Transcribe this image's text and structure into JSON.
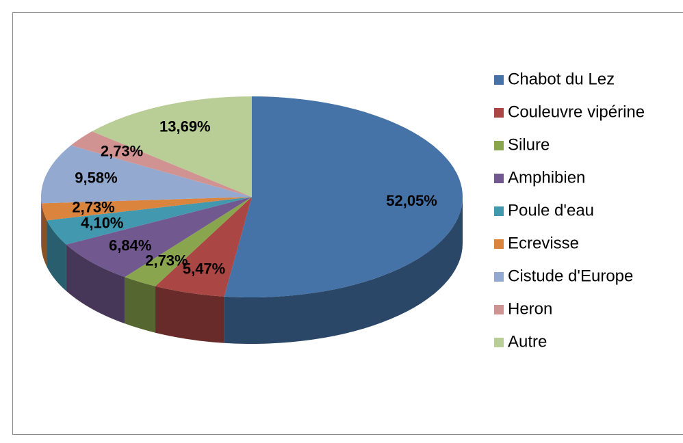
{
  "chart_data": {
    "type": "pie",
    "categories": [
      "Chabot du Lez",
      "Couleuvre vipérine",
      "Silure",
      "Amphibien",
      "Poule d'eau",
      "Ecrevisse",
      "Cistude d'Europe",
      "Heron",
      "Autre"
    ],
    "values": [
      52.05,
      5.47,
      2.73,
      6.84,
      4.1,
      2.73,
      9.58,
      2.73,
      13.69
    ],
    "value_labels": [
      "52,05%",
      "5,47%",
      "2,73%",
      "6,84%",
      "4,10%",
      "2,73%",
      "9,58%",
      "2,73%",
      "13,69%"
    ],
    "colors": [
      "#4572a7",
      "#aa4643",
      "#89a54e",
      "#71588f",
      "#4198af",
      "#db843d",
      "#93a9cf",
      "#d19392",
      "#b9cd96"
    ],
    "legend": "right"
  }
}
